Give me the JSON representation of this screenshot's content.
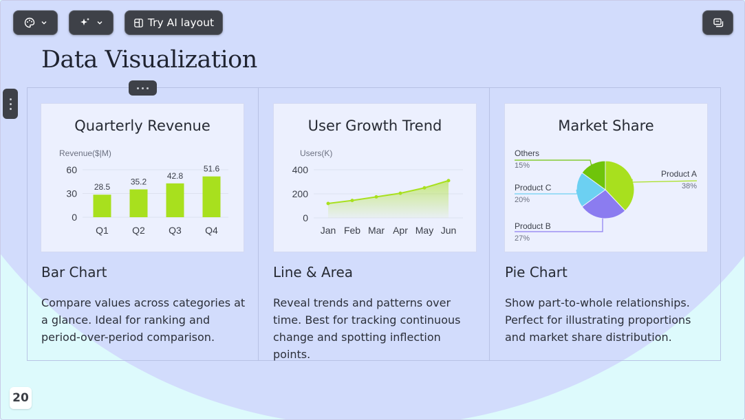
{
  "toolbar": {
    "ai_layout_label": "Try AI layout"
  },
  "slide": {
    "title": "Data Visualization",
    "page_number": "20"
  },
  "columns": [
    {
      "heading": "Bar Chart",
      "description": "Compare values across categories at a glance. Ideal for ranking and period-over-period comparison."
    },
    {
      "heading": "Line & Area",
      "description": "Reveal trends and patterns over time. Best for tracking continuous change and spotting inflection points."
    },
    {
      "heading": "Pie Chart",
      "description": "Show part-to-whole relationships. Perfect for illustrating proportions and market share distribution."
    }
  ],
  "colors": {
    "accent_green": "#a8e01e",
    "pie_blue": "#6cd0f2",
    "pie_purple": "#8b7cf0",
    "pie_dark_green": "#6fc40a"
  },
  "chart_data": [
    {
      "type": "bar",
      "title": "Quarterly Revenue",
      "ylabel": "Revenue($|M)",
      "categories": [
        "Q1",
        "Q2",
        "Q3",
        "Q4"
      ],
      "values": [
        28.5,
        35.2,
        42.8,
        51.6
      ],
      "value_labels": [
        "28.5",
        "35.2",
        "42.8",
        "51.6"
      ],
      "yticks": [
        "0",
        "30",
        "60"
      ],
      "ylim": [
        0,
        60
      ]
    },
    {
      "type": "area",
      "title": "User Growth Trend",
      "ylabel": "Users(K)",
      "categories": [
        "Jan",
        "Feb",
        "Mar",
        "Apr",
        "May",
        "Jun"
      ],
      "values": [
        120,
        145,
        175,
        205,
        250,
        310
      ],
      "yticks": [
        "0",
        "200",
        "400"
      ],
      "ylim": [
        0,
        400
      ]
    },
    {
      "type": "pie",
      "title": "Market Share",
      "slices": [
        {
          "name": "Product A",
          "pct_label": "38%",
          "value": 38
        },
        {
          "name": "Product B",
          "pct_label": "27%",
          "value": 27
        },
        {
          "name": "Product C",
          "pct_label": "20%",
          "value": 20
        },
        {
          "name": "Others",
          "pct_label": "15%",
          "value": 15
        }
      ]
    }
  ]
}
